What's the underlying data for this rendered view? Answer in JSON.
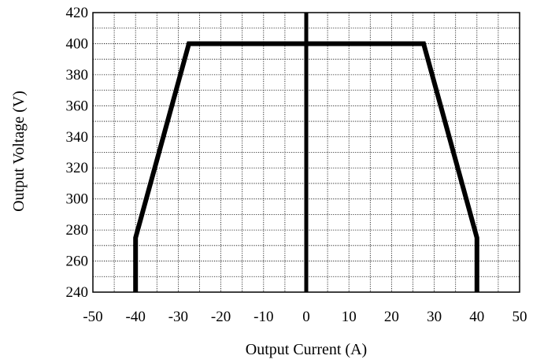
{
  "chart_data": {
    "type": "line",
    "title": "",
    "xlabel": "Output Current (A)",
    "ylabel": "Output Voltage (V)",
    "xlim": [
      -50,
      50
    ],
    "ylim": [
      240,
      420
    ],
    "x_ticks": [
      "-50",
      "-40",
      "-30",
      "-20",
      "-10",
      "0",
      "10",
      "20",
      "30",
      "40",
      "50"
    ],
    "y_ticks": [
      "240",
      "260",
      "280",
      "300",
      "320",
      "340",
      "360",
      "380",
      "400",
      "420"
    ],
    "x_minor_step": 5,
    "y_minor_step": 10,
    "grid": "dotted",
    "legend": "none",
    "colors": {
      "line": "#000000",
      "grid": "#000000",
      "frame": "#000000"
    },
    "series": [
      {
        "x": [
          -40,
          -40,
          -27.5,
          27.5,
          40,
          40
        ],
        "y": [
          240,
          275,
          400,
          400,
          275,
          240
        ]
      }
    ],
    "reference_lines": [
      {
        "orientation": "vertical",
        "x": 0
      }
    ]
  }
}
